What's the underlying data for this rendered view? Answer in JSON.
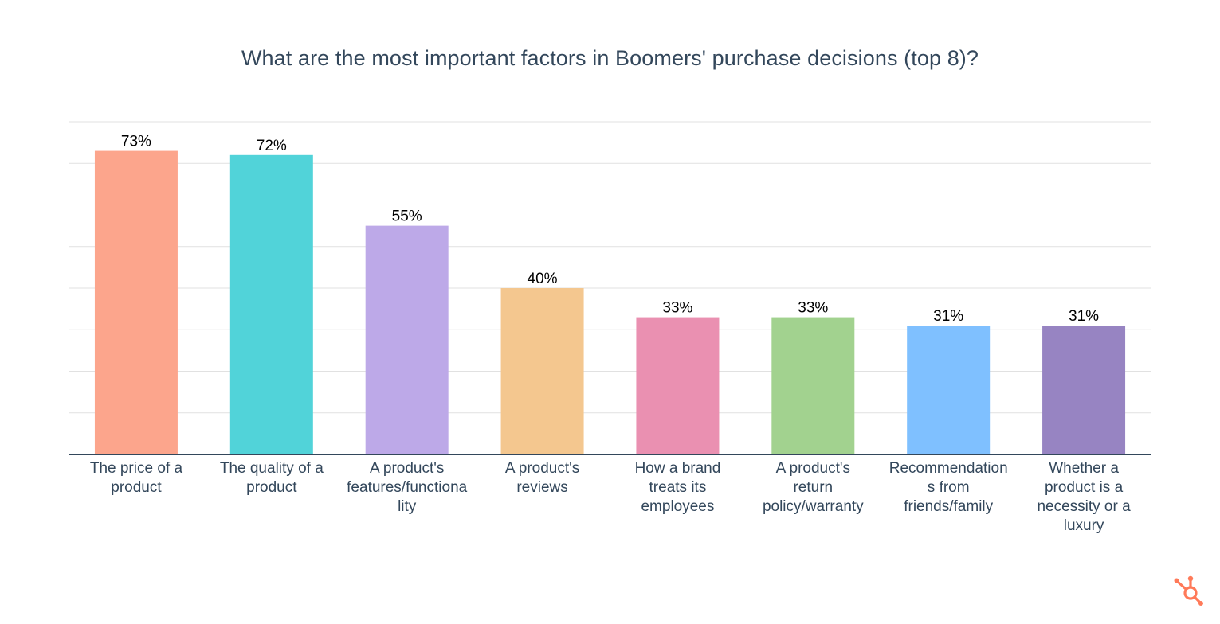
{
  "chart_data": {
    "type": "bar",
    "title": "What are the most important factors in Boomers' purchase decisions (top 8)?",
    "xlabel": "",
    "ylabel": "",
    "ylim": [
      0,
      80
    ],
    "grid": true,
    "categories": [
      [
        "The price of a",
        "product"
      ],
      [
        "The quality of a",
        "product"
      ],
      [
        "A product's",
        "features/functiona",
        "lity"
      ],
      [
        "A product's",
        "reviews"
      ],
      [
        "How a brand",
        "treats its",
        "employees"
      ],
      [
        "A product's",
        "return",
        "policy/warranty"
      ],
      [
        "Recommendation",
        "s from",
        "friends/family"
      ],
      [
        "Whether a",
        "product is a",
        "necessity or a",
        "luxury"
      ]
    ],
    "values": [
      73,
      72,
      55,
      40,
      33,
      33,
      31,
      31
    ],
    "value_labels": [
      "73%",
      "72%",
      "55%",
      "40%",
      "33%",
      "33%",
      "31%",
      "31%"
    ],
    "colors": [
      "#FCA58C",
      "#51D3D9",
      "#BDA9E8",
      "#F4C78F",
      "#EA90B1",
      "#A2D28F",
      "#7FC0FF",
      "#9784C2"
    ]
  },
  "brand": {
    "icon": "hubspot-sprocket-icon",
    "color": "#FF7A59"
  }
}
